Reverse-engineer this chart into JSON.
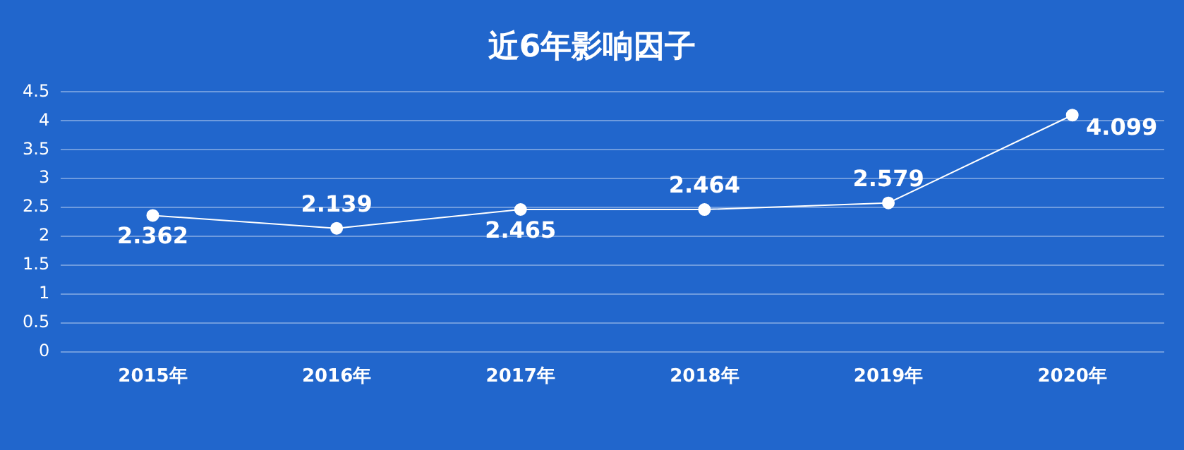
{
  "chart_data": {
    "type": "line",
    "title": "近6年影响因子",
    "categories": [
      "2015年",
      "2016年",
      "2017年",
      "2018年",
      "2019年",
      "2020年"
    ],
    "series": [
      {
        "color": "#ffffff",
        "values": [
          2.362,
          2.139,
          2.465,
          2.464,
          2.579,
          4.099
        ]
      }
    ],
    "ylim": [
      0,
      4.5
    ],
    "yticks": [
      0,
      0.5,
      1,
      1.5,
      2,
      2.5,
      3,
      3.5,
      4,
      4.5
    ],
    "grid": "y",
    "marker": "circle",
    "data_labels": true,
    "legend": false
  }
}
